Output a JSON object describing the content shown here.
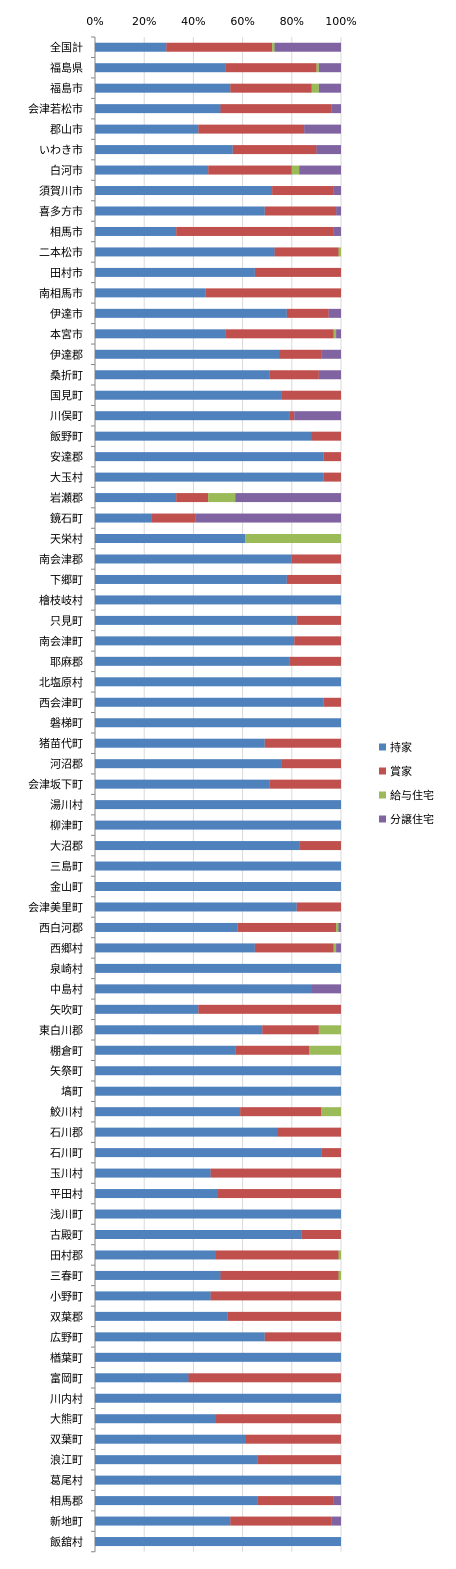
{
  "chart_data": {
    "type": "bar",
    "orientation": "horizontal",
    "stacked": "percent",
    "title": "",
    "xlabel": "",
    "ylabel": "",
    "xlim": [
      0,
      100
    ],
    "x_ticks": [
      "0%",
      "20%",
      "40%",
      "60%",
      "80%",
      "100%"
    ],
    "x_axis_position": "top",
    "grid": "vertical",
    "legend_position": "right",
    "categories": [
      "全国計",
      "福島県",
      "福島市",
      "会津若松市",
      "郡山市",
      "いわき市",
      "白河市",
      "須賀川市",
      "喜多方市",
      "相馬市",
      "二本松市",
      "田村市",
      "南相馬市",
      "伊達市",
      "本宮市",
      "伊達郡",
      "桑折町",
      "国見町",
      "川俣町",
      "飯野町",
      "安達郡",
      "大玉村",
      "岩瀬郡",
      "鏡石町",
      "天栄村",
      "南会津郡",
      "下郷町",
      "檜枝岐村",
      "只見町",
      "南会津町",
      "耶麻郡",
      "北塩原村",
      "西会津町",
      "磐梯町",
      "猪苗代町",
      "河沼郡",
      "会津坂下町",
      "湯川村",
      "柳津町",
      "大沼郡",
      "三島町",
      "金山町",
      "会津美里町",
      "西白河郡",
      "西郷村",
      "泉崎村",
      "中島村",
      "矢吹町",
      "東白川郡",
      "棚倉町",
      "矢祭町",
      "塙町",
      "鮫川村",
      "石川郡",
      "石川町",
      "玉川村",
      "平田村",
      "浅川町",
      "古殿町",
      "田村郡",
      "三春町",
      "小野町",
      "双葉郡",
      "広野町",
      "楢葉町",
      "富岡町",
      "川内村",
      "大熊町",
      "双葉町",
      "浪江町",
      "葛尾村",
      "相馬郡",
      "新地町",
      "飯舘村"
    ],
    "series": [
      {
        "name": "持家",
        "color": "#4F81BD",
        "values": [
          29,
          53,
          55,
          51,
          42,
          56,
          46,
          72,
          69,
          33,
          73,
          65,
          45,
          78,
          53,
          75,
          71,
          76,
          79,
          88,
          93,
          93,
          33,
          23,
          61,
          80,
          78,
          100,
          82,
          81,
          79,
          100,
          93,
          100,
          69,
          76,
          71,
          100,
          100,
          83,
          100,
          100,
          82,
          58,
          65,
          100,
          88,
          42,
          68,
          57,
          100,
          100,
          59,
          74,
          92,
          47,
          50,
          100,
          84,
          49,
          51,
          47,
          54,
          69,
          100,
          38,
          100,
          49,
          61,
          66,
          100,
          66,
          55,
          100
        ]
      },
      {
        "name": "賞家",
        "color": "#C0504D",
        "values": [
          43,
          37,
          33,
          45,
          43,
          34,
          34,
          25,
          29,
          64,
          26,
          35,
          55,
          17,
          44,
          17,
          20,
          24,
          2,
          12,
          7,
          7,
          13,
          18,
          0,
          20,
          22,
          0,
          18,
          19,
          21,
          0,
          7,
          0,
          31,
          24,
          29,
          0,
          0,
          17,
          0,
          0,
          18,
          40,
          32,
          0,
          0,
          58,
          23,
          30,
          0,
          0,
          33,
          26,
          8,
          53,
          50,
          0,
          16,
          50,
          48,
          53,
          46,
          31,
          0,
          62,
          0,
          51,
          39,
          34,
          0,
          31,
          41,
          0
        ]
      },
      {
        "name": "給与住宅",
        "color": "#9BBB59",
        "values": [
          1,
          1,
          3,
          0,
          0,
          0,
          3,
          0,
          0,
          0,
          1,
          0,
          0,
          0,
          1,
          0,
          0,
          0,
          0,
          0,
          0,
          0,
          11,
          0,
          39,
          0,
          0,
          0,
          0,
          0,
          0,
          0,
          0,
          0,
          0,
          0,
          0,
          0,
          0,
          0,
          0,
          0,
          0,
          1,
          1,
          0,
          0,
          0,
          9,
          13,
          0,
          0,
          8,
          0,
          0,
          0,
          0,
          0,
          0,
          1,
          1,
          0,
          0,
          0,
          0,
          0,
          0,
          0,
          0,
          0,
          0,
          0,
          0,
          0
        ]
      },
      {
        "name": "分譲住宅",
        "color": "#8064A2",
        "values": [
          27,
          9,
          9,
          4,
          15,
          10,
          17,
          3,
          2,
          3,
          0,
          0,
          0,
          5,
          2,
          8,
          9,
          0,
          19,
          0,
          0,
          0,
          43,
          59,
          0,
          0,
          0,
          0,
          0,
          0,
          0,
          0,
          0,
          0,
          0,
          0,
          0,
          0,
          0,
          0,
          0,
          0,
          0,
          1,
          2,
          0,
          12,
          0,
          0,
          0,
          0,
          0,
          0,
          0,
          0,
          0,
          0,
          0,
          0,
          0,
          0,
          0,
          0,
          0,
          0,
          0,
          0,
          0,
          0,
          0,
          0,
          3,
          4,
          0
        ]
      }
    ]
  }
}
